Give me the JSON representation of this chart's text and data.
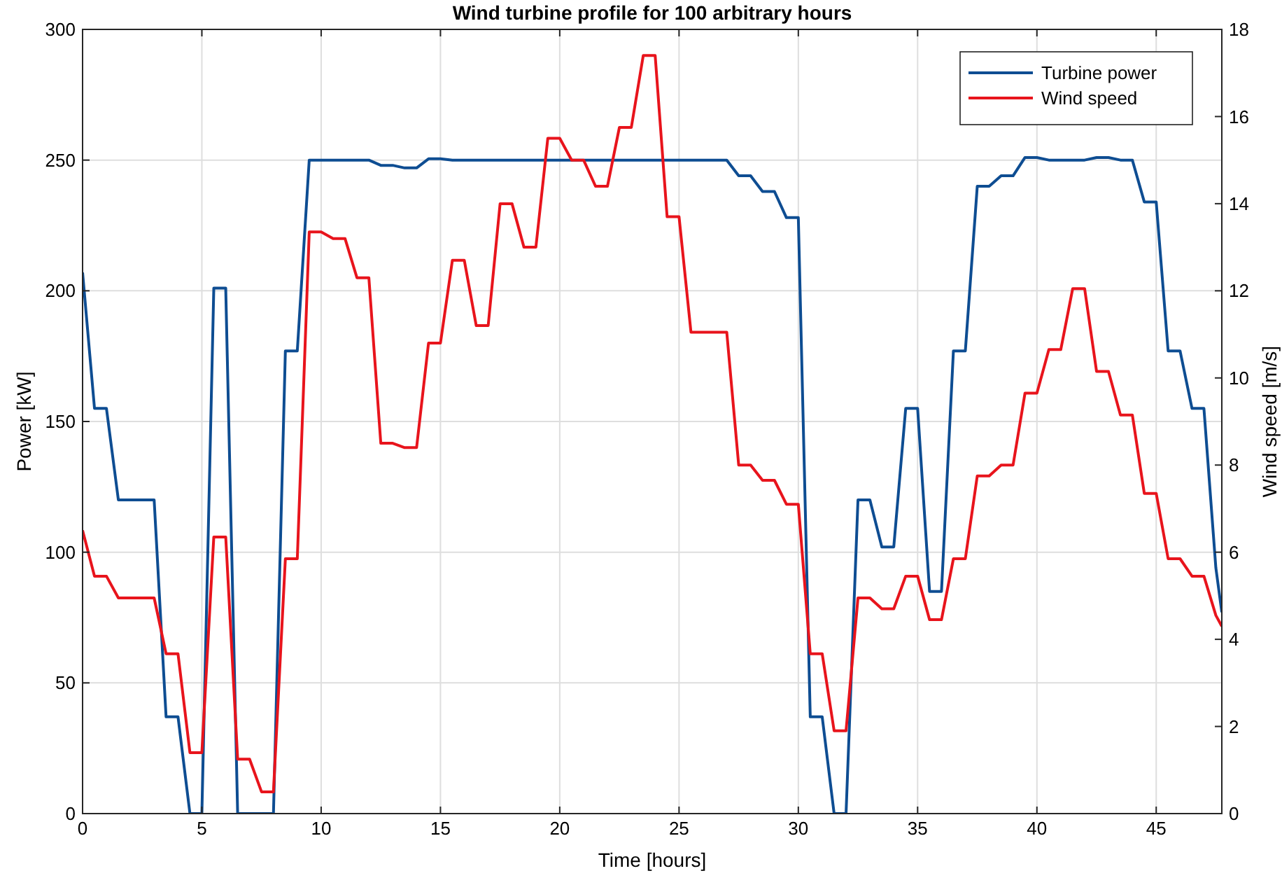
{
  "chart_data": {
    "type": "line",
    "title": "Wind turbine profile for 100 arbitrary hours",
    "xlabel": "Time [hours]",
    "ylabel": "Power [kW]",
    "y2label": "Wind speed [m/s]",
    "x": [
      0,
      0.5,
      1,
      1.5,
      2,
      2.5,
      3,
      3.5,
      4,
      4.5,
      5,
      5.5,
      6,
      6.5,
      7,
      7.5,
      8,
      8.5,
      9,
      9.5,
      10,
      10.5,
      11,
      11.5,
      12,
      12.5,
      13,
      13.5,
      14,
      14.5,
      15,
      15.5,
      16,
      16.5,
      17,
      17.5,
      18,
      18.5,
      19,
      19.5,
      20,
      20.5,
      21,
      21.5,
      22,
      22.5,
      23,
      23.5,
      24,
      24.5,
      25,
      25.5,
      26,
      26.5,
      27,
      27.5,
      28,
      28.5,
      29,
      29.5,
      30,
      30.5,
      31,
      31.5,
      32,
      32.5,
      33,
      33.5,
      34,
      34.5,
      35,
      35.5,
      36,
      36.5,
      37,
      37.5,
      38,
      38.5,
      39,
      39.5,
      40,
      40.5,
      41,
      41.5,
      42,
      42.5,
      43,
      43.5,
      44,
      44.5,
      45,
      45.5,
      46,
      46.5,
      47,
      47.5,
      47.75
    ],
    "series": [
      {
        "name": "Turbine power",
        "color": "#0e4d92",
        "values": [
          207,
          155,
          155,
          120,
          120,
          120,
          120,
          37,
          37,
          0,
          0,
          201,
          201,
          0,
          0,
          0,
          0,
          177,
          177,
          250,
          250,
          250,
          250,
          250,
          250,
          248,
          248,
          247,
          247,
          250.5,
          250.5,
          250,
          250,
          250,
          250,
          250,
          250,
          250,
          250,
          250,
          250,
          250,
          250,
          250,
          250,
          250,
          250,
          250,
          250,
          250,
          250,
          250,
          250,
          250,
          250,
          244,
          244,
          238,
          238,
          228,
          228,
          37,
          37,
          0,
          0,
          120,
          120,
          102,
          102,
          155,
          155,
          85,
          85,
          177,
          177,
          240,
          240,
          244,
          244,
          251,
          251,
          250,
          250,
          250,
          250,
          251,
          251,
          250,
          250,
          234,
          234,
          177,
          177,
          155,
          155,
          94,
          77
        ]
      },
      {
        "name": "Wind speed",
        "color": "#e8141c",
        "axis": "y2",
        "values": [
          6.5,
          5.45,
          5.45,
          4.95,
          4.95,
          4.95,
          4.95,
          3.67,
          3.67,
          1.4,
          1.4,
          6.35,
          6.35,
          1.25,
          1.25,
          0.5,
          0.5,
          5.85,
          5.85,
          13.35,
          13.35,
          13.2,
          13.2,
          12.3,
          12.3,
          8.5,
          8.5,
          8.4,
          8.4,
          10.8,
          10.8,
          12.7,
          12.7,
          11.2,
          11.2,
          14,
          14,
          13,
          13,
          15.5,
          15.5,
          15,
          15,
          14.4,
          14.4,
          15.75,
          15.75,
          17.4,
          17.4,
          13.7,
          13.7,
          11.05,
          11.05,
          11.05,
          11.05,
          8,
          8,
          7.65,
          7.65,
          7.1,
          7.1,
          3.67,
          3.67,
          1.9,
          1.9,
          4.95,
          4.95,
          4.7,
          4.7,
          5.45,
          5.45,
          4.45,
          4.45,
          5.85,
          5.85,
          7.75,
          7.75,
          8,
          8,
          9.65,
          9.65,
          10.65,
          10.65,
          12.05,
          12.05,
          10.15,
          10.15,
          9.15,
          9.15,
          7.35,
          7.35,
          5.85,
          5.85,
          5.45,
          5.45,
          4.55,
          4.3
        ]
      }
    ],
    "xlim": [
      0,
      47.75
    ],
    "xticks": [
      0,
      5,
      10,
      15,
      20,
      25,
      30,
      35,
      40,
      45
    ],
    "ylim": [
      0,
      300
    ],
    "yticks": [
      0,
      50,
      100,
      150,
      200,
      250,
      300
    ],
    "y2lim": [
      0,
      18
    ],
    "y2ticks": [
      0,
      2,
      4,
      6,
      8,
      10,
      12,
      14,
      16,
      18
    ],
    "grid": true,
    "legend": "top right"
  }
}
